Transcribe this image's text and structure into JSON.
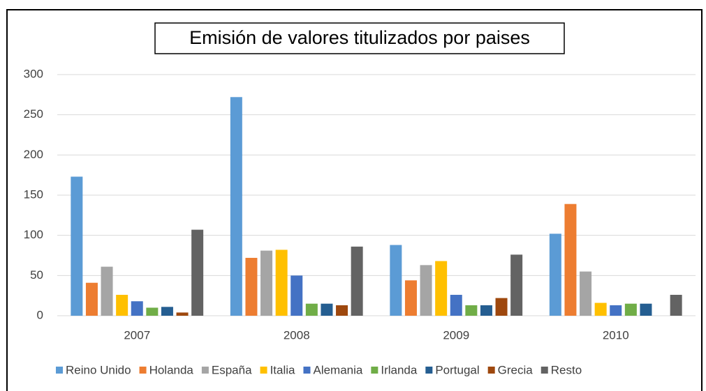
{
  "chart_data": {
    "type": "bar",
    "title": "Emisión de valores titulizados por paises",
    "categories": [
      "2007",
      "2008",
      "2009",
      "2010"
    ],
    "series": [
      {
        "name": "Reino Unido",
        "color": "#5b9bd5",
        "values": [
          173,
          272,
          88,
          102
        ]
      },
      {
        "name": "Holanda",
        "color": "#ed7d31",
        "values": [
          41,
          72,
          44,
          139
        ]
      },
      {
        "name": "España",
        "color": "#a5a5a5",
        "values": [
          61,
          81,
          63,
          55
        ]
      },
      {
        "name": "Italia",
        "color": "#ffc000",
        "values": [
          26,
          82,
          68,
          16
        ]
      },
      {
        "name": "Alemania",
        "color": "#4472c4",
        "values": [
          18,
          50,
          26,
          13
        ]
      },
      {
        "name": "Irlanda",
        "color": "#70ad47",
        "values": [
          10,
          15,
          13,
          15
        ]
      },
      {
        "name": "Portugal",
        "color": "#255e91",
        "values": [
          11,
          15,
          13,
          15
        ]
      },
      {
        "name": "Grecia",
        "color": "#9e480e",
        "values": [
          4,
          13,
          22,
          null
        ]
      },
      {
        "name": "Resto",
        "color": "#636363",
        "values": [
          107,
          86,
          76,
          26
        ]
      }
    ],
    "ylim": [
      0,
      300
    ],
    "yticks": [
      0,
      50,
      100,
      150,
      200,
      250,
      300
    ],
    "grid": true,
    "legend": "bottom"
  }
}
